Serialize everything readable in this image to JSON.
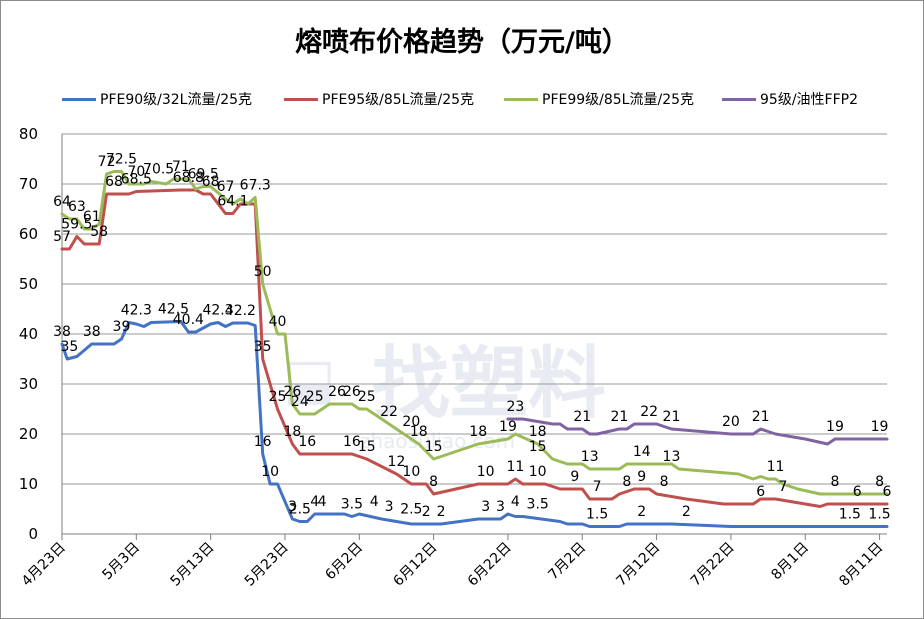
{
  "chart_data": {
    "type": "line",
    "title": "熔喷布价格趋势（万元/吨）",
    "xlabel": "",
    "ylabel": "",
    "ylim": [
      0,
      80
    ],
    "yticks": [
      "0",
      "10",
      "20",
      "30",
      "40",
      "50",
      "60",
      "70",
      "80"
    ],
    "x_tick_labels": [
      "4月23日",
      "5月3日",
      "5月13日",
      "5月23日",
      "6月2日",
      "6月12日",
      "6月22日",
      "7月2日",
      "7月12日",
      "7月22日",
      "8月1日",
      "8月11日"
    ],
    "x_tick_days": [
      0,
      10,
      20,
      30,
      40,
      50,
      60,
      70,
      80,
      90,
      100,
      110
    ],
    "x_range": [
      0,
      111
    ],
    "grid": "horizontal",
    "legend_position": "top",
    "series": [
      {
        "name": "PFE90级/32L流量/25克",
        "color": "#4472C4",
        "points": [
          [
            0,
            38
          ],
          [
            0.7,
            35
          ],
          [
            2,
            35.5
          ],
          [
            4,
            38
          ],
          [
            7,
            38
          ],
          [
            8,
            39
          ],
          [
            9,
            42.3
          ],
          [
            10,
            42
          ],
          [
            11,
            41.5
          ],
          [
            12,
            42.3
          ],
          [
            16,
            42.5
          ],
          [
            17,
            40.4
          ],
          [
            18,
            40.4
          ],
          [
            20,
            42
          ],
          [
            21,
            42.3
          ],
          [
            22,
            41.5
          ],
          [
            23,
            42.2
          ],
          [
            25,
            42.2
          ],
          [
            26,
            41.7
          ],
          [
            27,
            16
          ],
          [
            28,
            10
          ],
          [
            29,
            10
          ],
          [
            31,
            3
          ],
          [
            32,
            2.5
          ],
          [
            33,
            2.5
          ],
          [
            34,
            4
          ],
          [
            38,
            4
          ],
          [
            39,
            3.5
          ],
          [
            40,
            4
          ],
          [
            43,
            3
          ],
          [
            45,
            2.5
          ],
          [
            47,
            2
          ],
          [
            51,
            2
          ],
          [
            56,
            3
          ],
          [
            59,
            3
          ],
          [
            60,
            4
          ],
          [
            61,
            3.5
          ],
          [
            62,
            3.5
          ],
          [
            67,
            2.5
          ],
          [
            68,
            2
          ],
          [
            70,
            2
          ],
          [
            71,
            1.5
          ],
          [
            75,
            1.5
          ],
          [
            76,
            2
          ],
          [
            82,
            2
          ],
          [
            90,
            1.5
          ],
          [
            108,
            1.5
          ],
          [
            111,
            1.5
          ]
        ],
        "labels": [
          [
            0,
            38,
            "38"
          ],
          [
            1,
            35,
            "35"
          ],
          [
            4,
            38,
            "38"
          ],
          [
            8,
            39,
            "39"
          ],
          [
            10,
            42.3,
            "42.3"
          ],
          [
            15,
            42.5,
            "42.5"
          ],
          [
            17,
            40.4,
            "40.4"
          ],
          [
            21,
            42.3,
            "42.3"
          ],
          [
            24,
            42.2,
            "42.2"
          ],
          [
            27,
            16,
            "16"
          ],
          [
            28,
            10,
            "10"
          ],
          [
            31,
            3,
            "3"
          ],
          [
            32,
            2.5,
            "2.5"
          ],
          [
            34,
            4,
            "4"
          ],
          [
            35,
            4,
            "4"
          ],
          [
            39,
            3.5,
            "3.5"
          ],
          [
            42,
            4,
            "4"
          ],
          [
            44,
            3,
            "3"
          ],
          [
            47,
            2.5,
            "2.5"
          ],
          [
            49,
            2,
            "2"
          ],
          [
            51,
            2,
            "2"
          ],
          [
            57,
            3,
            "3"
          ],
          [
            59,
            3,
            "3"
          ],
          [
            61,
            4,
            "4"
          ],
          [
            64,
            3.5,
            "3.5"
          ],
          [
            72,
            1.5,
            "1.5"
          ],
          [
            78,
            2,
            "2"
          ],
          [
            84,
            2,
            "2"
          ],
          [
            106,
            1.5,
            "1.5"
          ],
          [
            110,
            1.5,
            "1.5"
          ]
        ]
      },
      {
        "name": "PFE95级/85L流量/25克",
        "color": "#C0504D",
        "points": [
          [
            0,
            57
          ],
          [
            1,
            57
          ],
          [
            2,
            59.5
          ],
          [
            3,
            58
          ],
          [
            5,
            58
          ],
          [
            6,
            68
          ],
          [
            9,
            68
          ],
          [
            10,
            68.5
          ],
          [
            16,
            68.8
          ],
          [
            18,
            68.8
          ],
          [
            19,
            68
          ],
          [
            20,
            68
          ],
          [
            22,
            64.1
          ],
          [
            23,
            64.1
          ],
          [
            24,
            66
          ],
          [
            26,
            66
          ],
          [
            27,
            35
          ],
          [
            29,
            25
          ],
          [
            31,
            18
          ],
          [
            32,
            16
          ],
          [
            39,
            16
          ],
          [
            41,
            15
          ],
          [
            45,
            12
          ],
          [
            47,
            10
          ],
          [
            49,
            10
          ],
          [
            50,
            8
          ],
          [
            56,
            10
          ],
          [
            60,
            10
          ],
          [
            61,
            11
          ],
          [
            62,
            10
          ],
          [
            65,
            10
          ],
          [
            67,
            9
          ],
          [
            70,
            9
          ],
          [
            71,
            7
          ],
          [
            74,
            7
          ],
          [
            75,
            8
          ],
          [
            77,
            9
          ],
          [
            79,
            9
          ],
          [
            80,
            8
          ],
          [
            84,
            7
          ],
          [
            89,
            6
          ],
          [
            93,
            6
          ],
          [
            94,
            7
          ],
          [
            96,
            7
          ],
          [
            100,
            6
          ],
          [
            102,
            5.5
          ],
          [
            103,
            6
          ],
          [
            109,
            6
          ],
          [
            111,
            6
          ]
        ],
        "labels": [
          [
            0,
            57,
            "57"
          ],
          [
            2,
            59.5,
            "59.5"
          ],
          [
            5,
            58,
            "58"
          ],
          [
            7,
            68,
            "68"
          ],
          [
            10,
            68.5,
            "68.5"
          ],
          [
            17,
            68.8,
            "68.8"
          ],
          [
            20,
            68,
            "68"
          ],
          [
            23,
            64.1,
            "64.1"
          ],
          [
            27,
            35,
            "35"
          ],
          [
            29,
            25,
            "25"
          ],
          [
            31,
            18,
            "18"
          ],
          [
            33,
            16,
            "16"
          ],
          [
            39,
            16,
            "16"
          ],
          [
            41,
            15,
            "15"
          ],
          [
            45,
            12,
            "12"
          ],
          [
            47,
            10,
            "10"
          ],
          [
            50,
            8,
            "8"
          ],
          [
            57,
            10,
            "10"
          ],
          [
            61,
            11,
            "11"
          ],
          [
            64,
            10,
            "10"
          ],
          [
            69,
            9,
            "9"
          ],
          [
            72,
            7,
            "7"
          ],
          [
            76,
            8,
            "8"
          ],
          [
            78,
            9,
            "9"
          ],
          [
            81,
            8,
            "8"
          ],
          [
            94,
            6,
            "6"
          ],
          [
            97,
            7,
            "7"
          ],
          [
            107,
            6,
            "6"
          ],
          [
            111,
            6,
            "6"
          ]
        ]
      },
      {
        "name": "PFE99级/85L流量/25克",
        "color": "#9BBB59",
        "points": [
          [
            0,
            64
          ],
          [
            1,
            63
          ],
          [
            2,
            63
          ],
          [
            3,
            61
          ],
          [
            4,
            61
          ],
          [
            5,
            62
          ],
          [
            6,
            72
          ],
          [
            7,
            72.5
          ],
          [
            8,
            72.5
          ],
          [
            9,
            70
          ],
          [
            10,
            70
          ],
          [
            11,
            70
          ],
          [
            12,
            70.5
          ],
          [
            14,
            70
          ],
          [
            15,
            71
          ],
          [
            17,
            71
          ],
          [
            18,
            69
          ],
          [
            19,
            69.5
          ],
          [
            20,
            69.5
          ],
          [
            22,
            67
          ],
          [
            23,
            66
          ],
          [
            24,
            67
          ],
          [
            25,
            66
          ],
          [
            26,
            67.3
          ],
          [
            27,
            50
          ],
          [
            28,
            45
          ],
          [
            29,
            40
          ],
          [
            30,
            40
          ],
          [
            31,
            26
          ],
          [
            32,
            24
          ],
          [
            34,
            24
          ],
          [
            35,
            25
          ],
          [
            36,
            26
          ],
          [
            39,
            26
          ],
          [
            40,
            25
          ],
          [
            41,
            25
          ],
          [
            43,
            23
          ],
          [
            46,
            20
          ],
          [
            48,
            18
          ],
          [
            50,
            15
          ],
          [
            56,
            18
          ],
          [
            60,
            19
          ],
          [
            61,
            20
          ],
          [
            64,
            18
          ],
          [
            66,
            15
          ],
          [
            68,
            14
          ],
          [
            70,
            14
          ],
          [
            71,
            13
          ],
          [
            75,
            13
          ],
          [
            76,
            14
          ],
          [
            82,
            14
          ],
          [
            83,
            13
          ],
          [
            91,
            12
          ],
          [
            93,
            11
          ],
          [
            94,
            11.5
          ],
          [
            95,
            11
          ],
          [
            96,
            11
          ],
          [
            97,
            10
          ],
          [
            99,
            9
          ],
          [
            102,
            8
          ],
          [
            111,
            8
          ]
        ],
        "labels": [
          [
            0,
            64,
            "64"
          ],
          [
            2,
            63,
            "63"
          ],
          [
            4,
            61,
            "61"
          ],
          [
            6,
            72,
            "72"
          ],
          [
            8,
            72.5,
            "72.5"
          ],
          [
            10,
            70,
            "70"
          ],
          [
            13,
            70.5,
            "70.5"
          ],
          [
            16,
            71,
            "71"
          ],
          [
            19,
            69.5,
            "69.5"
          ],
          [
            22,
            67,
            "67"
          ],
          [
            26,
            67.3,
            "67.3"
          ],
          [
            27,
            50,
            "50"
          ],
          [
            29,
            40,
            "40"
          ],
          [
            31,
            26,
            "26"
          ],
          [
            32,
            24,
            "24"
          ],
          [
            34,
            25,
            "25"
          ],
          [
            37,
            26,
            "26"
          ],
          [
            39,
            26,
            "26"
          ],
          [
            41,
            25,
            "25"
          ],
          [
            44,
            22,
            "22"
          ],
          [
            47,
            20,
            "20"
          ],
          [
            48,
            18,
            "18"
          ],
          [
            50,
            15,
            "15"
          ],
          [
            56,
            18,
            "18"
          ],
          [
            60,
            19,
            "19"
          ],
          [
            64,
            18,
            "18"
          ],
          [
            64,
            15,
            "15"
          ],
          [
            71,
            13,
            "13"
          ],
          [
            78,
            14,
            "14"
          ],
          [
            82,
            13,
            "13"
          ],
          [
            96,
            11,
            "11"
          ],
          [
            104,
            8,
            "8"
          ],
          [
            110,
            8,
            "8"
          ]
        ]
      },
      {
        "name": "95级/油性FFP2",
        "color": "#8064A2",
        "points": [
          [
            60,
            23
          ],
          [
            62,
            23
          ],
          [
            66,
            22
          ],
          [
            67,
            22
          ],
          [
            68,
            21
          ],
          [
            69,
            21
          ],
          [
            70,
            21
          ],
          [
            71,
            20
          ],
          [
            72,
            20
          ],
          [
            75,
            21
          ],
          [
            76,
            21
          ],
          [
            77,
            22
          ],
          [
            80,
            22
          ],
          [
            82,
            21
          ],
          [
            90,
            20
          ],
          [
            93,
            20
          ],
          [
            94,
            21
          ],
          [
            95,
            20.5
          ],
          [
            96,
            20
          ],
          [
            100,
            19
          ],
          [
            103,
            18
          ],
          [
            104,
            19
          ],
          [
            111,
            19
          ]
        ],
        "labels": [
          [
            61,
            23,
            "23"
          ],
          [
            70,
            21,
            "21"
          ],
          [
            75,
            21,
            "21"
          ],
          [
            79,
            22,
            "22"
          ],
          [
            82,
            21,
            "21"
          ],
          [
            90,
            20,
            "20"
          ],
          [
            94,
            21,
            "21"
          ],
          [
            104,
            19,
            "19"
          ],
          [
            110,
            19,
            "19"
          ]
        ]
      }
    ]
  },
  "watermark": {
    "text": "找塑料",
    "subtext": "zhaosuliao.com"
  }
}
